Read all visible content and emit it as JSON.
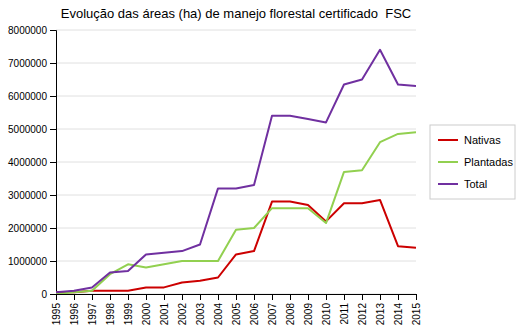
{
  "chart_data": {
    "type": "line",
    "title": "Evolução das áreas (ha) de manejo florestal certificado  FSC",
    "x": [
      1995,
      1996,
      1997,
      1998,
      1999,
      2000,
      2001,
      2002,
      2003,
      2004,
      2005,
      2006,
      2007,
      2008,
      2009,
      2010,
      2011,
      2012,
      2013,
      2014,
      2015
    ],
    "series": [
      {
        "name": "Nativas",
        "color": "#cc0000",
        "values": [
          50000,
          50000,
          100000,
          100000,
          100000,
          200000,
          200000,
          350000,
          400000,
          500000,
          1200000,
          1300000,
          2800000,
          2800000,
          2700000,
          2200000,
          2750000,
          2750000,
          2850000,
          1450000,
          1400000
        ]
      },
      {
        "name": "Plantadas",
        "color": "#92d050",
        "values": [
          0,
          50000,
          100000,
          600000,
          900000,
          800000,
          900000,
          1000000,
          1000000,
          1000000,
          1950000,
          2000000,
          2600000,
          2600000,
          2600000,
          2150000,
          3700000,
          3750000,
          4600000,
          4850000,
          4900000
        ]
      },
      {
        "name": "Total",
        "color": "#7030a0",
        "values": [
          50000,
          100000,
          200000,
          650000,
          700000,
          1200000,
          1250000,
          1300000,
          1500000,
          3200000,
          3200000,
          3300000,
          5400000,
          5400000,
          5300000,
          5200000,
          6350000,
          6500000,
          7400000,
          6350000,
          6300000
        ]
      }
    ],
    "xlim": [
      1995,
      2015
    ],
    "xticks": [
      1995,
      1996,
      1997,
      1998,
      1999,
      2000,
      2001,
      2002,
      2003,
      2004,
      2005,
      2006,
      2007,
      2008,
      2009,
      2010,
      2011,
      2012,
      2013,
      2014,
      2015
    ],
    "ylim": [
      0,
      8000000
    ],
    "yticks": [
      0,
      1000000,
      2000000,
      3000000,
      4000000,
      5000000,
      6000000,
      7000000,
      8000000
    ],
    "grid": "y",
    "legend": "right"
  }
}
